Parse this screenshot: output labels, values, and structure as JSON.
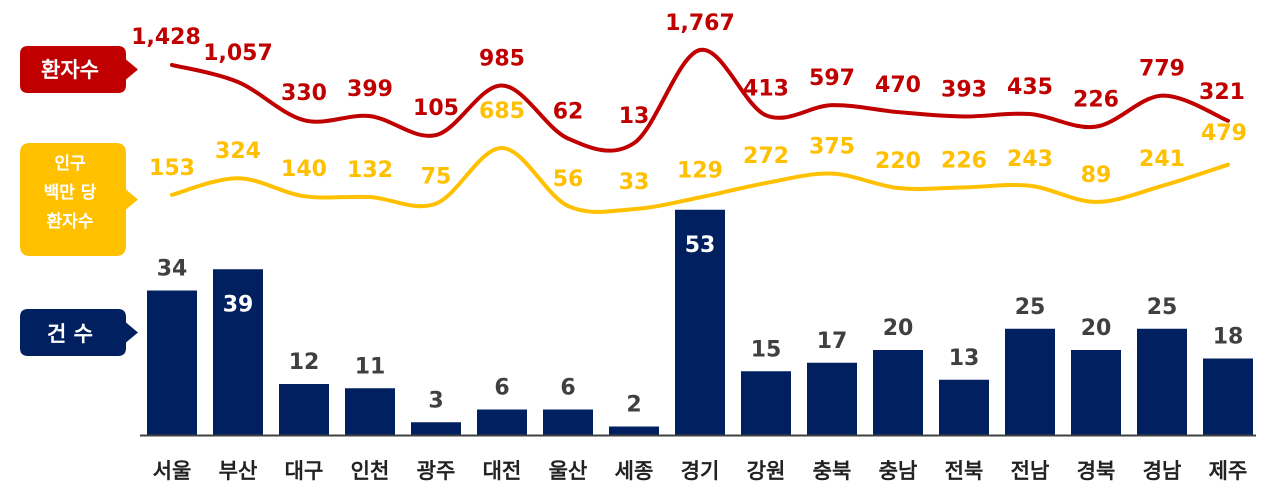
{
  "legend": {
    "patients": "환자수",
    "per_million_lines": [
      "인구",
      "백만 당",
      "환자수"
    ],
    "cases": "건 수"
  },
  "colors": {
    "patients": "#c00000",
    "per_million": "#ffc000",
    "cases": "#002060",
    "axis": "#404040",
    "case_label": "#404040",
    "case_label_inside": "#ffffff"
  },
  "chart_data": {
    "type": "bar",
    "categories": [
      "서울",
      "부산",
      "대구",
      "인천",
      "광주",
      "대전",
      "울산",
      "세종",
      "경기",
      "강원",
      "충북",
      "충남",
      "전북",
      "전남",
      "경북",
      "경남",
      "제주"
    ],
    "series": [
      {
        "name": "건 수",
        "type": "bar",
        "values": [
          34,
          39,
          12,
          11,
          3,
          6,
          6,
          2,
          53,
          15,
          17,
          20,
          13,
          25,
          20,
          25,
          18
        ]
      },
      {
        "name": "환자수",
        "type": "line",
        "values": [
          1428,
          1057,
          330,
          399,
          105,
          985,
          62,
          13,
          1767,
          413,
          597,
          470,
          393,
          435,
          226,
          779,
          321
        ],
        "labels": [
          "1,428",
          "1,057",
          "330",
          "399",
          "105",
          "985",
          "62",
          "13",
          "1,767",
          "413",
          "597",
          "470",
          "393",
          "435",
          "226",
          "779",
          "321"
        ]
      },
      {
        "name": "인구 백만 당 환자수",
        "type": "line",
        "values": [
          153,
          324,
          140,
          132,
          75,
          685,
          56,
          33,
          129,
          272,
          375,
          220,
          226,
          243,
          89,
          241,
          479
        ]
      }
    ]
  }
}
